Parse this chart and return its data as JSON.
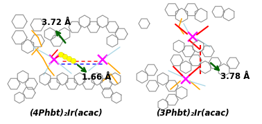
{
  "left_label": "(4Phbt)₂Ir(acac)",
  "right_label": "(3Phbt)₂Ir(acac)",
  "left_distance1": "3.72 Å",
  "left_distance2": "1.66 Å",
  "right_distance": "3.78 Å",
  "bg_color": "#ffffff",
  "arrow_color": "#006400",
  "mol_color": "#888888",
  "orange_color": "#FFA500",
  "magenta_color": "#FF00FF",
  "blue_color": "#0000FF",
  "red_color": "#FF0000",
  "yellow_color": "#FFFF00",
  "lightblue_color": "#ADD8E6",
  "label_fontsize": 8.5,
  "dist_fontsize": 8.5,
  "lw": 0.75
}
